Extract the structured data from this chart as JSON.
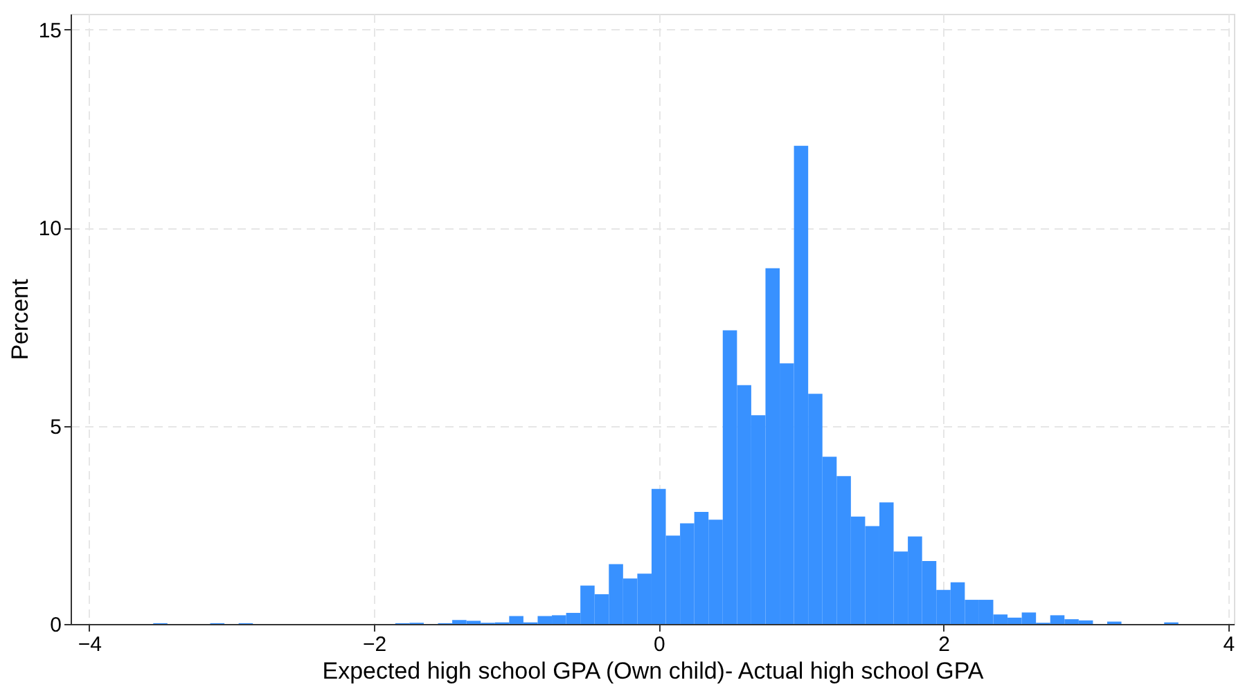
{
  "chart_data": {
    "type": "histogram",
    "xlabel": "Expected high school GPA (Own child)- Actual high school GPA",
    "ylabel": "Percent",
    "bins": [
      -3.55,
      -3.45,
      -3.35,
      -3.25,
      -3.15,
      -3.05,
      -2.95,
      -2.85,
      -2.75,
      -2.65,
      -2.55,
      -2.45,
      -2.35,
      -2.25,
      -2.15,
      -2.05,
      -1.95,
      -1.85,
      -1.75,
      -1.65,
      -1.55,
      -1.45,
      -1.35,
      -1.25,
      -1.15,
      -1.05,
      -0.95,
      -0.85,
      -0.75,
      -0.65,
      -0.55,
      -0.45,
      -0.35,
      -0.25,
      -0.15,
      -0.05,
      0.05,
      0.15,
      0.25,
      0.35,
      0.45,
      0.55,
      0.65,
      0.75,
      0.85,
      0.95,
      1.05,
      1.15,
      1.25,
      1.35,
      1.45,
      1.55,
      1.65,
      1.75,
      1.85,
      1.95,
      2.05,
      2.15,
      2.25,
      2.35,
      2.45,
      2.55,
      2.65,
      2.75,
      2.85,
      2.95,
      3.05,
      3.15,
      3.25,
      3.35,
      3.45,
      3.55,
      3.65
    ],
    "values": [
      0.02,
      0,
      0,
      0,
      0.02,
      0,
      0.02,
      0,
      0,
      0,
      0,
      0,
      0,
      0,
      0,
      0,
      0,
      0.02,
      0.03,
      0,
      0.02,
      0.1,
      0.08,
      0.03,
      0.04,
      0.2,
      0.04,
      0.2,
      0.22,
      0.28,
      0.97,
      0.75,
      1.51,
      1.15,
      1.27,
      3.41,
      2.23,
      2.54,
      2.83,
      2.63,
      7.41,
      6.03,
      5.27,
      8.98,
      6.58,
      12.07,
      5.81,
      4.22,
      3.73,
      2.71,
      2.47,
      3.07,
      1.83,
      2.21,
      1.59,
      0.86,
      1.05,
      0.61,
      0.61,
      0.24,
      0.16,
      0.29,
      0.03,
      0.22,
      0.12,
      0.09,
      0,
      0.06,
      0,
      0,
      0,
      0.04
    ],
    "color": "#3891ff",
    "xlim": [
      -4.13,
      4.04
    ],
    "xticks": [
      -4,
      -2,
      0,
      2,
      4
    ],
    "ylim": [
      0,
      15.4
    ],
    "yticks": [
      0,
      5,
      10,
      15
    ],
    "grid": true
  }
}
